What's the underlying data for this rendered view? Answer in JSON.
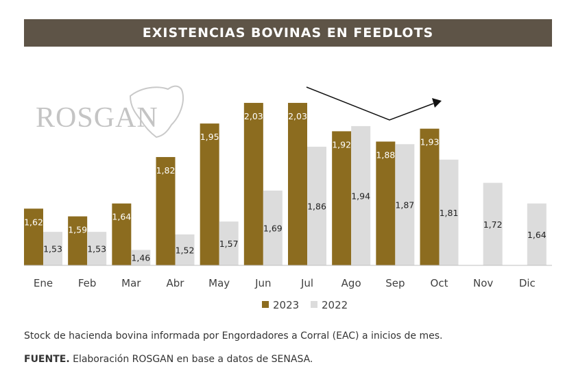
{
  "chart_data": {
    "type": "bar",
    "title": "EXISTENCIAS BOVINAS EN FEEDLOTS",
    "categories": [
      "Ene",
      "Feb",
      "Mar",
      "Abr",
      "May",
      "Jun",
      "Jul",
      "Ago",
      "Sep",
      "Oct",
      "Nov",
      "Dic"
    ],
    "series": [
      {
        "name": "2023",
        "color": "#8c6c1f",
        "label_color": "#ffffff",
        "values": [
          1.62,
          1.59,
          1.64,
          1.82,
          1.95,
          2.03,
          2.03,
          1.92,
          1.88,
          1.93,
          null,
          null
        ],
        "labels": [
          "1,62",
          "1,59",
          "1,64",
          "1,82",
          "1,95",
          "2,03",
          "2,03",
          "1,92",
          "1,88",
          "1,93",
          "",
          ""
        ]
      },
      {
        "name": "2022",
        "color": "#dcdcdc",
        "label_color": "#222222",
        "values": [
          1.53,
          1.53,
          1.46,
          1.52,
          1.57,
          1.69,
          1.86,
          1.94,
          1.87,
          1.81,
          1.72,
          1.64
        ],
        "labels": [
          "1,53",
          "1,53",
          "1,46",
          "1,52",
          "1,57",
          "1,69",
          "1,86",
          "1,94",
          "1,87",
          "1,81",
          "1,72",
          "1,64"
        ]
      }
    ],
    "ylim": [
      1.4,
      2.07
    ],
    "xlabel": "",
    "ylabel": "",
    "legend": "bottom-center",
    "annotation": "trend arrow from Jul to Oct"
  },
  "watermark": "ROSGAN",
  "notes": {
    "line1": "Stock de hacienda bovina informada por Engordadores a Corral (EAC) a inicios de mes.",
    "source_label": "FUENTE.",
    "source_text": " Elaboración ROSGAN en base a datos de SENASA."
  },
  "colors": {
    "title_bg": "#5e5447",
    "accent": "#8c6c1f",
    "light": "#dcdcdc"
  }
}
